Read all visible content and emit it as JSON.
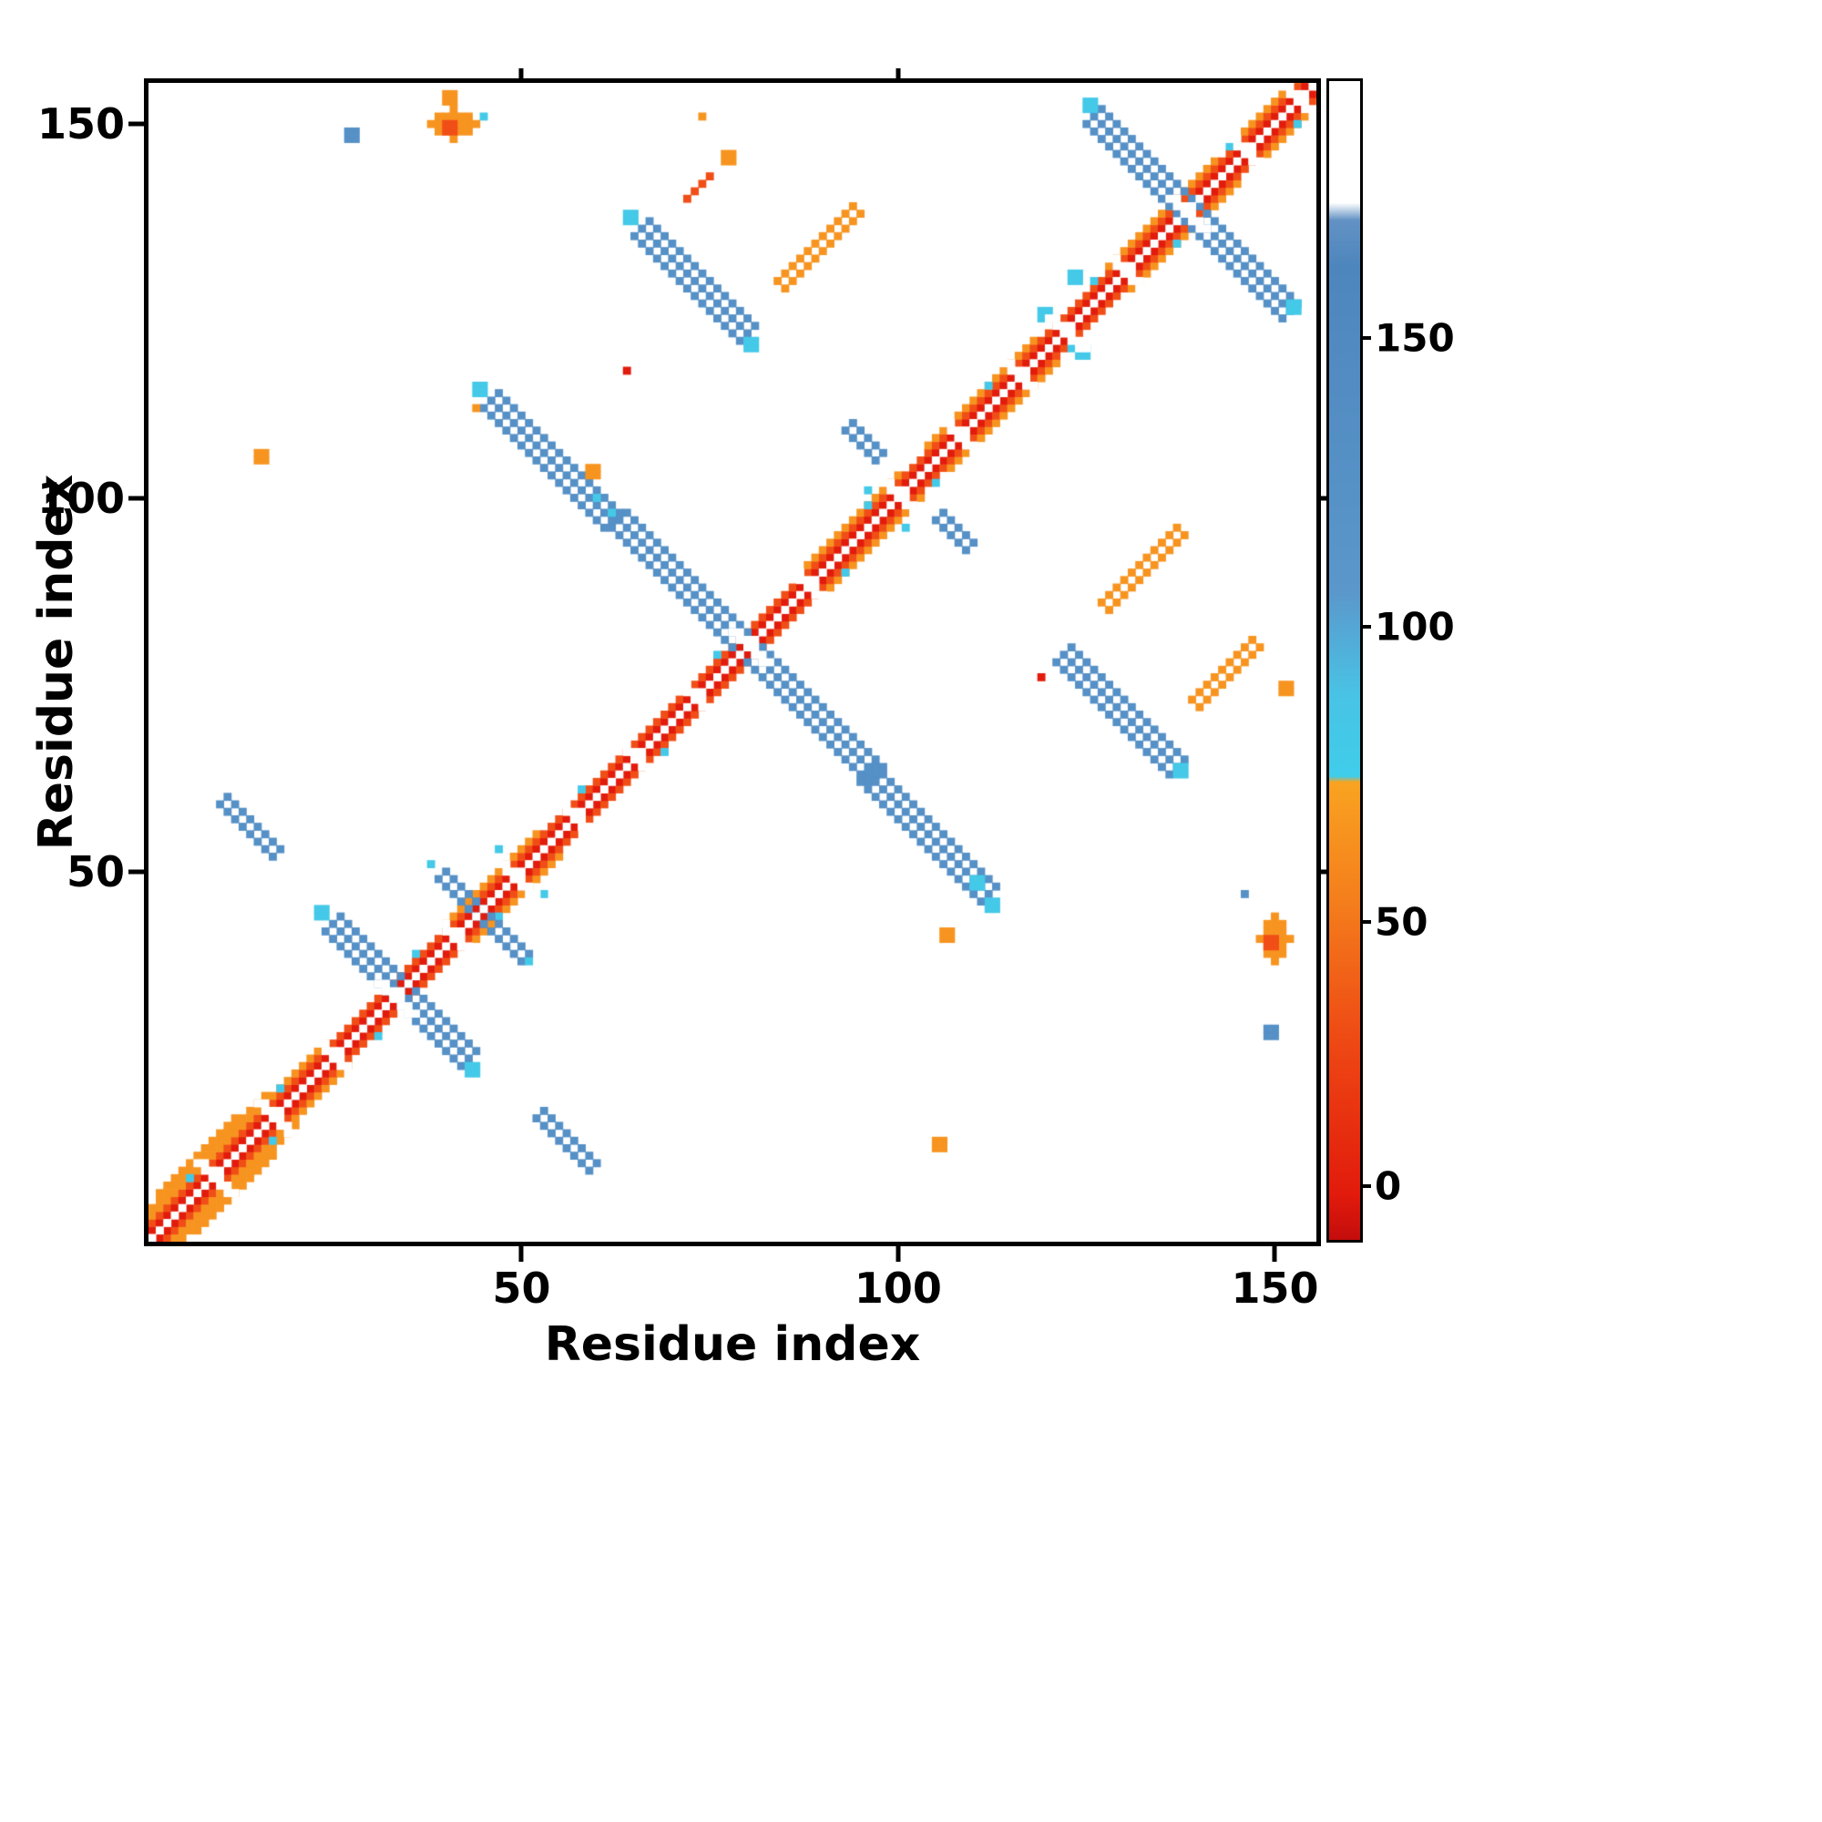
{
  "chart_data": {
    "type": "heatmap",
    "title": "",
    "xlabel": "Residue index",
    "ylabel": "Residue index",
    "x_ticks": [
      50,
      100,
      150
    ],
    "y_ticks": [
      50,
      100,
      150
    ],
    "n_residues": 155,
    "x_range": [
      1,
      155
    ],
    "y_range": [
      1,
      155
    ],
    "grid": false,
    "background": "#ffffff",
    "palette": {
      "red": "#e21b0c",
      "orangered": "#f14e17",
      "orange": "#f79420",
      "cyan": "#44c9e8",
      "blue": "#5590c6",
      "white": "#ffffff"
    },
    "colorbar": {
      "ticks": [
        0,
        50,
        100,
        150
      ],
      "value_range": [
        -9,
        195
      ],
      "gradient_stops": [
        {
          "p": 0,
          "c": "#c40d0c"
        },
        {
          "p": 4,
          "c": "#e21b0c"
        },
        {
          "p": 17,
          "c": "#ee4814"
        },
        {
          "p": 29,
          "c": "#f47d1c"
        },
        {
          "p": 39.5,
          "c": "#f9a321"
        },
        {
          "p": 40,
          "c": "#3fcdea"
        },
        {
          "p": 47,
          "c": "#49c3e5"
        },
        {
          "p": 56,
          "c": "#5b97cb"
        },
        {
          "p": 84,
          "c": "#4d86bd"
        },
        {
          "p": 88,
          "c": "#6392c4"
        },
        {
          "p": 89.5,
          "c": "#ffffff"
        },
        {
          "p": 100,
          "c": "#ffffff"
        }
      ]
    },
    "diagonal": {
      "o1_color": "red",
      "o2_color": "orangered",
      "o3_ranges": [
        [
          1,
          24
        ],
        [
          40,
          52
        ],
        [
          88,
          100
        ],
        [
          104,
          118
        ],
        [
          128,
          142
        ],
        [
          146,
          154
        ]
      ],
      "o4_ranges": [
        [
          1,
          16
        ]
      ],
      "o5_ranges": [
        [
          2,
          12
        ]
      ],
      "cyan_specks": [
        6,
        14,
        18,
        28,
        36,
        44,
        58,
        66,
        76,
        90,
        96,
        102,
        112,
        120,
        126,
        134,
        144,
        150
      ],
      "white_gaps": [
        9,
        17,
        25,
        33,
        41,
        49,
        57,
        65,
        73,
        80,
        88,
        100,
        108,
        116,
        122,
        130,
        138,
        146,
        153
      ],
      "gap_half": 2
    },
    "features": [
      {
        "t": "anti",
        "x": 25,
        "y": 43,
        "l": 19,
        "w": 3,
        "c": "blue"
      },
      {
        "t": "dot",
        "x": 23,
        "y": 44,
        "s": 2,
        "c": "cyan"
      },
      {
        "t": "dot",
        "x": 43,
        "y": 23,
        "s": 2,
        "c": "cyan"
      },
      {
        "t": "anti",
        "x": 63,
        "y": 97,
        "l": 35,
        "w": 3,
        "c": "blue"
      },
      {
        "t": "anti",
        "x": 46,
        "y": 113,
        "l": 17,
        "w": 3,
        "c": "blue"
      },
      {
        "t": "dot",
        "x": 44,
        "y": 114,
        "s": 2,
        "c": "cyan"
      },
      {
        "t": "dot",
        "x": 44,
        "y": 112,
        "s": 1,
        "c": "orange"
      },
      {
        "t": "dot",
        "x": 59,
        "y": 103,
        "s": 2,
        "c": "orange"
      },
      {
        "t": "dot",
        "x": 60,
        "y": 100,
        "s": 1,
        "c": "cyan"
      },
      {
        "t": "dot",
        "x": 62,
        "y": 98,
        "s": 1,
        "c": "cyan"
      },
      {
        "t": "anti",
        "x": 96,
        "y": 63,
        "l": 17,
        "w": 3,
        "c": "blue"
      },
      {
        "t": "dot",
        "x": 110,
        "y": 48,
        "s": 2,
        "c": "cyan"
      },
      {
        "t": "dot",
        "x": 112,
        "y": 45,
        "s": 2,
        "c": "cyan"
      },
      {
        "t": "dot",
        "x": 106,
        "y": 41,
        "s": 2,
        "c": "orange"
      },
      {
        "t": "anti",
        "x": 126,
        "y": 151,
        "l": 27,
        "w": 3,
        "c": "blue"
      },
      {
        "t": "dot",
        "x": 125,
        "y": 152,
        "s": 2,
        "c": "cyan"
      },
      {
        "t": "dot",
        "x": 152,
        "y": 125,
        "s": 2,
        "c": "cyan"
      },
      {
        "t": "dot",
        "x": 123,
        "y": 129,
        "s": 2,
        "c": "cyan"
      },
      {
        "t": "anti",
        "x": 66,
        "y": 136,
        "l": 15,
        "w": 3,
        "c": "blue"
      },
      {
        "t": "dot",
        "x": 64,
        "y": 137,
        "s": 2,
        "c": "cyan"
      },
      {
        "t": "dot",
        "x": 80,
        "y": 120,
        "s": 2,
        "c": "cyan"
      },
      {
        "t": "anti",
        "x": 122,
        "y": 79,
        "l": 16,
        "w": 3,
        "c": "blue"
      },
      {
        "t": "dot",
        "x": 137,
        "y": 63,
        "s": 2,
        "c": "cyan"
      },
      {
        "t": "anti",
        "x": 11,
        "y": 60,
        "l": 8,
        "w": 2,
        "c": "blue"
      },
      {
        "t": "anti",
        "x": 53,
        "y": 18,
        "l": 8,
        "w": 2,
        "c": "blue"
      },
      {
        "t": "anti",
        "x": 94,
        "y": 110,
        "l": 5,
        "w": 2,
        "c": "blue"
      },
      {
        "t": "anti",
        "x": 106,
        "y": 98,
        "l": 5,
        "w": 2,
        "c": "blue"
      },
      {
        "t": "anti",
        "x": 40,
        "y": 50,
        "l": 6,
        "w": 2,
        "c": "blue"
      },
      {
        "t": "anti",
        "x": 46,
        "y": 44,
        "l": 6,
        "w": 2,
        "c": "blue"
      },
      {
        "t": "dot",
        "x": 38,
        "y": 51,
        "s": 1,
        "c": "cyan"
      },
      {
        "t": "dot",
        "x": 51,
        "y": 38,
        "s": 1,
        "c": "cyan"
      },
      {
        "t": "para",
        "x": 85,
        "y": 128,
        "l": 11,
        "w": 2,
        "c": "orange"
      },
      {
        "t": "para",
        "x": 128,
        "y": 85,
        "l": 11,
        "w": 2,
        "c": "orange"
      },
      {
        "t": "para",
        "x": 140,
        "y": 72,
        "l": 9,
        "w": 2,
        "c": "orange"
      },
      {
        "t": "para",
        "x": 72,
        "y": 140,
        "l": 4,
        "w": 1,
        "c": "orangered"
      },
      {
        "t": "dot",
        "x": 77,
        "y": 145,
        "s": 2,
        "c": "orange"
      },
      {
        "t": "dot",
        "x": 151,
        "y": 74,
        "s": 2,
        "c": "orange"
      },
      {
        "t": "blob",
        "x": 41,
        "y": 150,
        "rx": 3,
        "ry": 2,
        "c": "orange"
      },
      {
        "t": "dot",
        "x": 40,
        "y": 149,
        "s": 2,
        "c": "orangered"
      },
      {
        "t": "dot",
        "x": 40,
        "y": 153,
        "s": 2,
        "c": "orange"
      },
      {
        "t": "dot",
        "x": 45,
        "y": 151,
        "s": 1,
        "c": "cyan"
      },
      {
        "t": "blob",
        "x": 150,
        "y": 41,
        "rx": 2,
        "ry": 3,
        "c": "orange"
      },
      {
        "t": "dot",
        "x": 149,
        "y": 40,
        "s": 2,
        "c": "orangered"
      },
      {
        "t": "dot",
        "x": 146,
        "y": 47,
        "s": 1,
        "c": "blue"
      },
      {
        "t": "dot",
        "x": 149,
        "y": 28,
        "s": 2,
        "c": "blue"
      },
      {
        "t": "dot",
        "x": 27,
        "y": 148,
        "s": 2,
        "c": "blue"
      },
      {
        "t": "dot",
        "x": 15,
        "y": 105,
        "s": 2,
        "c": "orange"
      },
      {
        "t": "dot",
        "x": 105,
        "y": 13,
        "s": 2,
        "c": "orange"
      },
      {
        "t": "dot",
        "x": 64,
        "y": 117,
        "s": 1,
        "c": "red"
      },
      {
        "t": "dot",
        "x": 119,
        "y": 76,
        "s": 1,
        "c": "red"
      },
      {
        "t": "dot",
        "x": 96,
        "y": 101,
        "s": 1,
        "c": "cyan"
      },
      {
        "t": "dot",
        "x": 101,
        "y": 96,
        "s": 1,
        "c": "cyan"
      },
      {
        "t": "dot",
        "x": 119,
        "y": 124,
        "s": 2,
        "c": "cyan"
      },
      {
        "t": "dot",
        "x": 124,
        "y": 119,
        "s": 2,
        "c": "cyan"
      },
      {
        "t": "dot",
        "x": 47,
        "y": 53,
        "s": 1,
        "c": "cyan"
      },
      {
        "t": "dot",
        "x": 53,
        "y": 47,
        "s": 1,
        "c": "cyan"
      },
      {
        "t": "dot",
        "x": 74,
        "y": 151,
        "s": 1,
        "c": "orange"
      }
    ]
  }
}
